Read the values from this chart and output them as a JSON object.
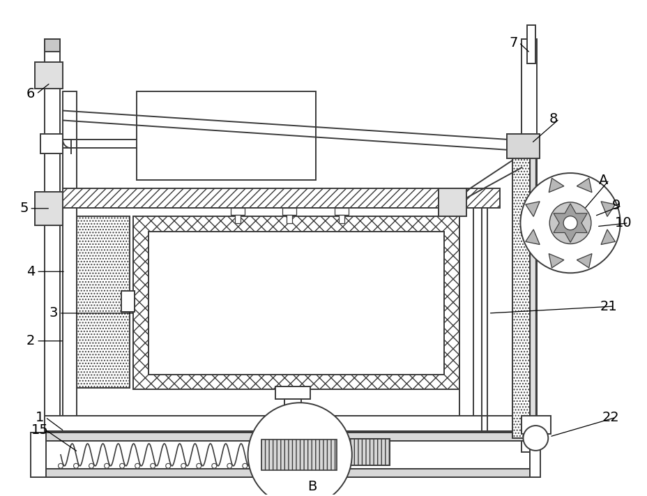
{
  "bg_color": "#ffffff",
  "line_color": "#3a3a3a",
  "lw_main": 1.4,
  "lw_thin": 0.9,
  "figsize": [
    9.29,
    7.11
  ],
  "dpi": 100
}
